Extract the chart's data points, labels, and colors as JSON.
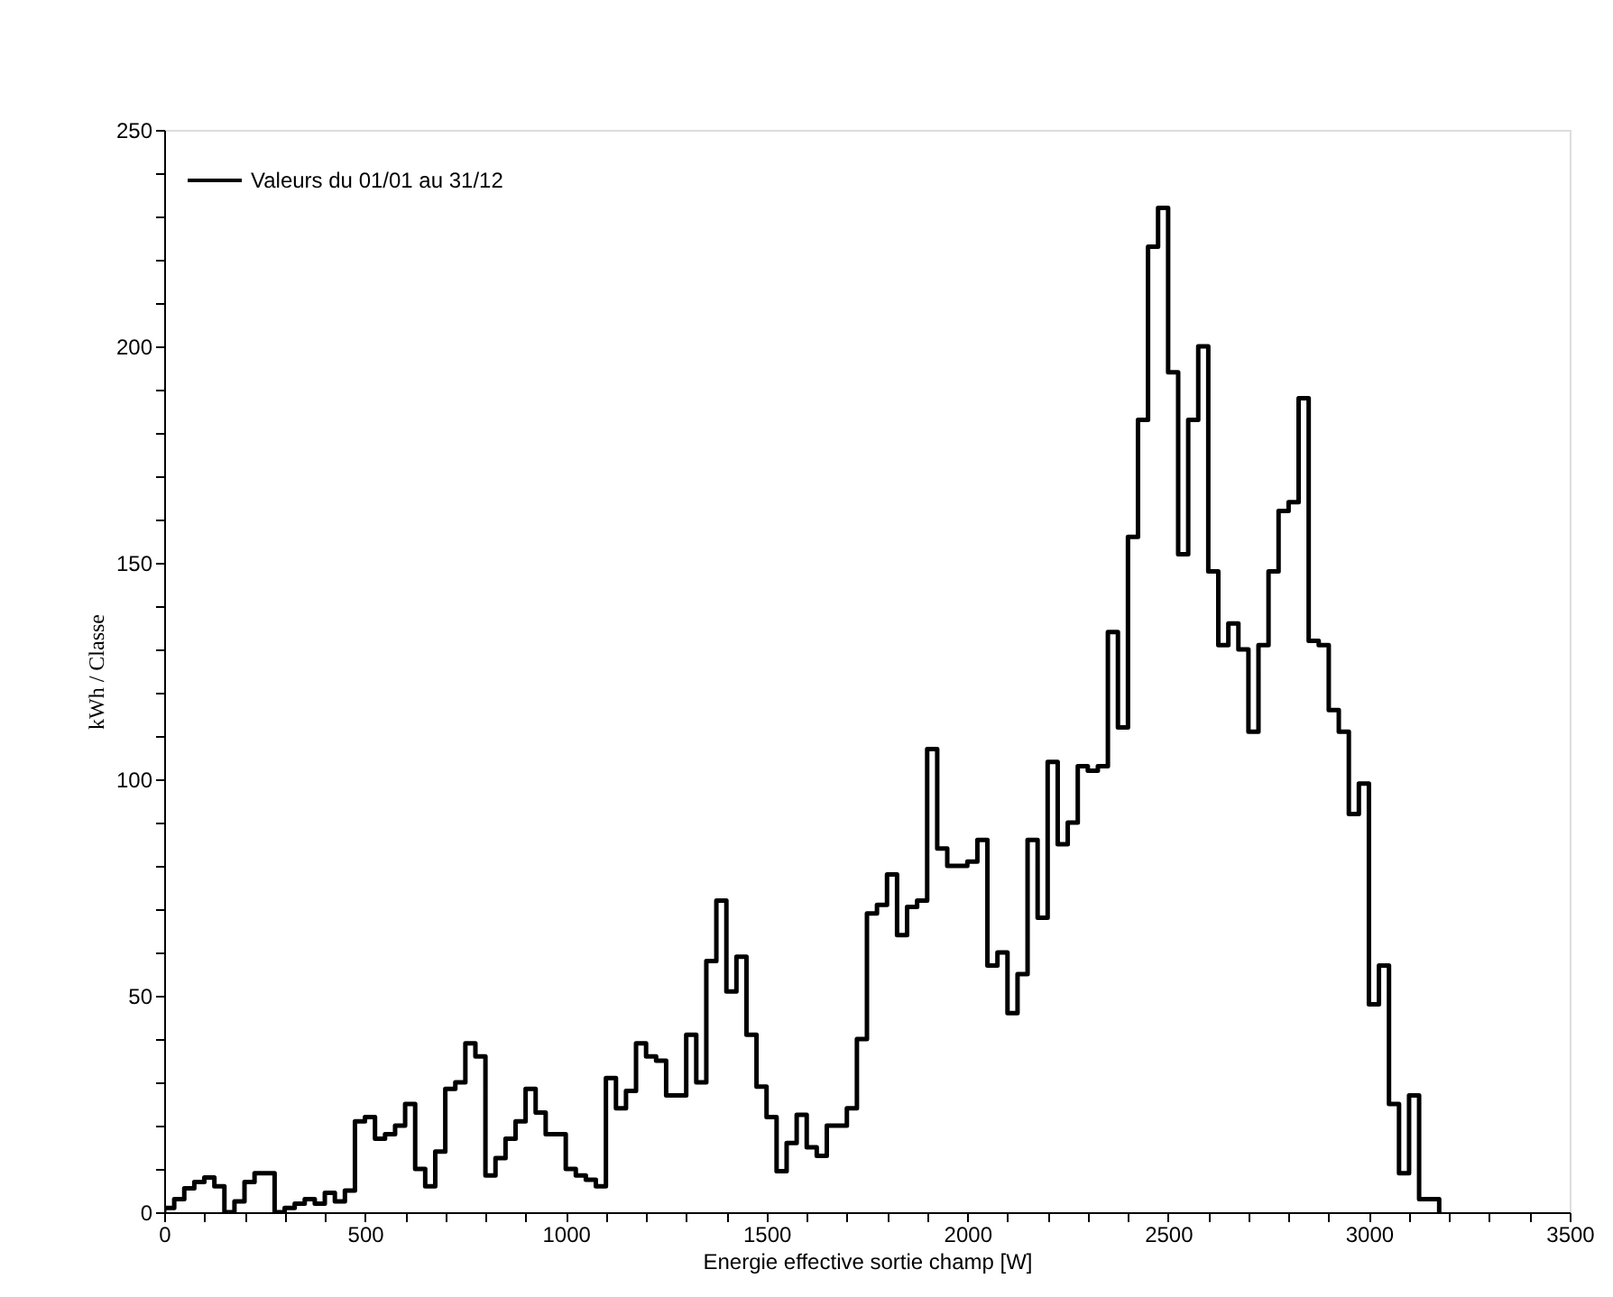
{
  "chart_data": {
    "type": "histogram",
    "xlabel": "Energie effective sortie champ [W]",
    "ylabel": "kWh / Classe",
    "bins": [
      0,
      25,
      50,
      75,
      100,
      125,
      150,
      175,
      200,
      225,
      250,
      275,
      300,
      325,
      350,
      375,
      400,
      425,
      450,
      475,
      500,
      525,
      550,
      575,
      600,
      625,
      650,
      675,
      700,
      725,
      750,
      775,
      800,
      825,
      850,
      875,
      900,
      925,
      950,
      975,
      1000,
      1025,
      1050,
      1075,
      1100,
      1125,
      1150,
      1175,
      1200,
      1225,
      1250,
      1275,
      1300,
      1325,
      1350,
      1375,
      1400,
      1425,
      1450,
      1475,
      1500,
      1525,
      1550,
      1575,
      1600,
      1625,
      1650,
      1675,
      1700,
      1725,
      1750,
      1775,
      1800,
      1825,
      1850,
      1875,
      1900,
      1925,
      1950,
      1975,
      2000,
      2025,
      2050,
      2075,
      2100,
      2125,
      2150,
      2175,
      2200,
      2225,
      2250,
      2275,
      2300,
      2325,
      2350,
      2375,
      2400,
      2425,
      2450,
      2475,
      2500,
      2525,
      2550,
      2575,
      2600,
      2625,
      2650,
      2675,
      2700,
      2725,
      2750,
      2775,
      2800,
      2825,
      2850,
      2875,
      2900,
      2925,
      2950,
      2975,
      3000,
      3025,
      3050,
      3075,
      3100,
      3125,
      3150,
      3175
    ],
    "series": [
      {
        "name": "Valeurs du 01/01 au 31/12",
        "color": "#000000",
        "values": [
          1,
          3,
          5.5,
          7,
          8,
          6,
          0,
          2.5,
          7,
          9,
          9,
          0,
          1,
          2,
          3,
          2,
          4.5,
          2.5,
          5,
          21,
          22,
          17,
          18,
          20,
          25,
          10,
          6,
          14,
          28.5,
          30,
          39,
          36,
          8.5,
          12.5,
          17,
          21,
          28.5,
          23,
          18,
          18,
          10,
          8.5,
          7.5,
          6,
          31,
          24,
          28,
          39,
          36,
          35,
          27,
          27,
          41,
          30,
          58,
          72,
          51,
          59,
          41,
          29,
          22,
          9.5,
          16,
          22.5,
          15,
          13,
          20,
          20,
          24,
          40,
          69,
          71,
          78,
          64,
          70.5,
          72,
          107,
          84,
          80,
          80,
          81,
          86,
          57,
          60,
          46,
          55,
          86,
          68,
          104,
          85,
          90,
          103,
          102,
          103,
          134,
          112,
          156,
          183,
          223,
          232,
          194,
          152,
          183,
          200,
          148,
          131,
          136,
          130,
          111,
          131,
          148,
          162,
          164,
          188,
          132,
          131,
          116,
          111,
          92,
          99,
          48,
          57,
          25,
          9,
          27,
          3,
          3
        ]
      }
    ],
    "xlim": [
      0,
      3500
    ],
    "xticks": [
      0,
      {
        "value": 100,
        "label": null
      },
      {
        "value": 200,
        "label": null
      },
      {
        "value": 300,
        "label": null
      },
      {
        "value": 400,
        "label": null
      },
      500,
      {
        "value": 600,
        "label": null
      },
      {
        "value": 700,
        "label": null
      },
      {
        "value": 800,
        "label": null
      },
      {
        "value": 900,
        "label": null
      },
      1000,
      {
        "value": 1100,
        "label": null
      },
      {
        "value": 1200,
        "label": null
      },
      {
        "value": 1300,
        "label": null
      },
      {
        "value": 1400,
        "label": null
      },
      1500,
      {
        "value": 1600,
        "label": null
      },
      {
        "value": 1700,
        "label": null
      },
      {
        "value": 1800,
        "label": null
      },
      {
        "value": 1900,
        "label": null
      },
      2000,
      {
        "value": 2100,
        "label": null
      },
      {
        "value": 2200,
        "label": null
      },
      {
        "value": 2300,
        "label": null
      },
      {
        "value": 2400,
        "label": null
      },
      2500,
      {
        "value": 2600,
        "label": null
      },
      {
        "value": 2700,
        "label": null
      },
      {
        "value": 2800,
        "label": null
      },
      {
        "value": 2900,
        "label": null
      },
      3000,
      {
        "value": 3100,
        "label": null
      },
      {
        "value": 3200,
        "label": null
      },
      {
        "value": 3300,
        "label": null
      },
      {
        "value": 3400,
        "label": null
      },
      3500
    ],
    "ylim": [
      0,
      250
    ],
    "yticks": [
      0,
      {
        "value": 10,
        "label": null
      },
      {
        "value": 20,
        "label": null
      },
      {
        "value": 30,
        "label": null
      },
      {
        "value": 40,
        "label": null
      },
      50,
      {
        "value": 60,
        "label": null
      },
      {
        "value": 70,
        "label": null
      },
      {
        "value": 80,
        "label": null
      },
      {
        "value": 90,
        "label": null
      },
      100,
      {
        "value": 110,
        "label": null
      },
      {
        "value": 120,
        "label": null
      },
      {
        "value": 130,
        "label": null
      },
      {
        "value": 140,
        "label": null
      },
      150,
      {
        "value": 160,
        "label": null
      },
      {
        "value": 170,
        "label": null
      },
      {
        "value": 180,
        "label": null
      },
      {
        "value": 190,
        "label": null
      },
      200,
      {
        "value": 210,
        "label": null
      },
      {
        "value": 220,
        "label": null
      },
      {
        "value": 230,
        "label": null
      },
      {
        "value": 240,
        "label": null
      },
      250
    ],
    "grid": false,
    "legend": "top left",
    "line_style": "solid"
  }
}
